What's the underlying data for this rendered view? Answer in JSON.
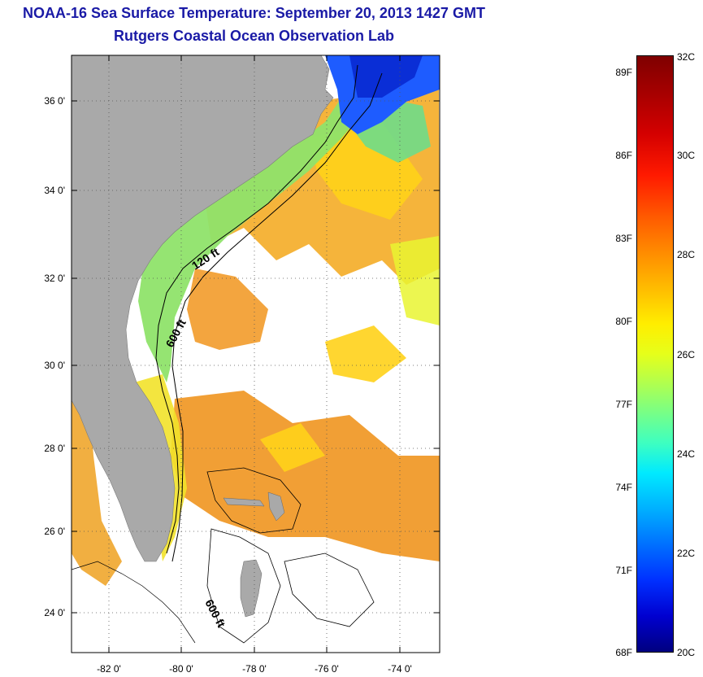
{
  "title": {
    "line1": "NOAA-16 Sea Surface Temperature:  September 20, 2013 1427 GMT",
    "line2": "Rutgers Coastal Ocean Observation Lab"
  },
  "map": {
    "lat_range": [
      23,
      37.2
    ],
    "lon_range": [
      -83,
      -73
    ],
    "lat_ticks": [
      "36 0'",
      "34 0'",
      "32 0'",
      "30 0'",
      "28 0'",
      "26 0'",
      "24 0'"
    ],
    "lon_ticks": [
      "-82 0'",
      "-80 0'",
      "-78 0'",
      "-76 0'",
      "-74 0'"
    ],
    "contour_labels": [
      "120 ft",
      "600 ft",
      "600 ft"
    ],
    "colors": {
      "land": "#a9a9a9",
      "cloud": "#ffffff",
      "warm_ocean": "#f6b12a",
      "cool_shelf": "#8ee36a",
      "cold_north": "#1e5cff"
    }
  },
  "colorbar": {
    "f_labels": [
      "89F",
      "86F",
      "83F",
      "80F",
      "77F",
      "74F",
      "71F",
      "68F"
    ],
    "c_labels": [
      "32C",
      "30C",
      "28C",
      "26C",
      "24C",
      "22C",
      "20C"
    ]
  }
}
